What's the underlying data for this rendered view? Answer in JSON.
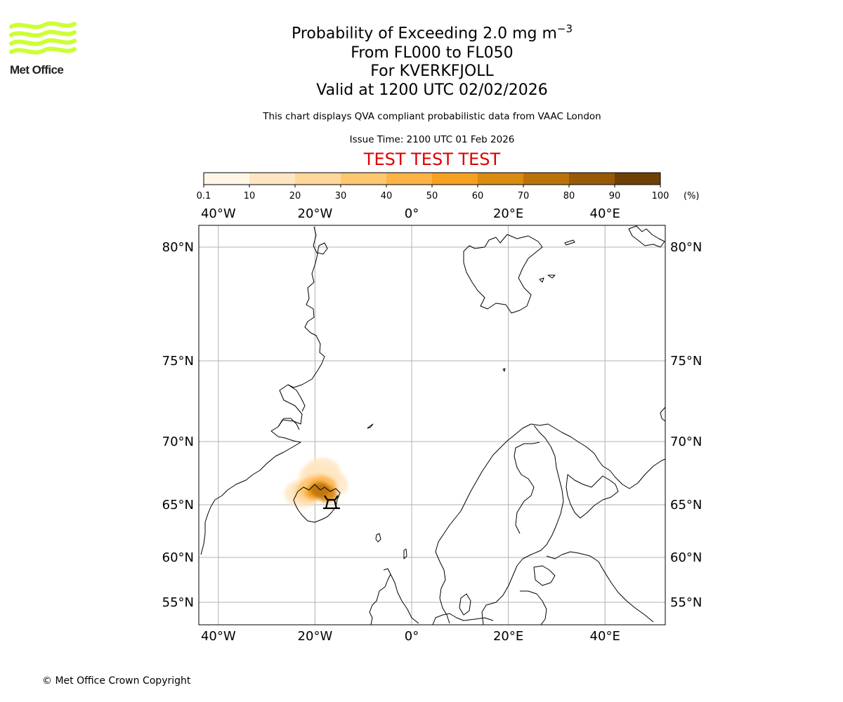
{
  "logo": {
    "text": "Met Office",
    "color": "#ccff33"
  },
  "title": {
    "prefix": "Probability of Exceeding 2.0 mg m",
    "exponent": "−3"
  },
  "subtitle_lines": [
    "From FL000 to FL050",
    "For KVERKFJOLL",
    "Valid at 1200 UTC 02/02/2026"
  ],
  "note": "This chart displays QVA compliant probabilistic data from VAAC London",
  "issue_time": "Issue Time: 2100 UTC 01 Feb 2026",
  "test_banner": "TEST TEST TEST",
  "test_color": "#dd0000",
  "colorbar": {
    "ticks": [
      "0.1",
      "10",
      "20",
      "30",
      "40",
      "50",
      "60",
      "70",
      "80",
      "90",
      "100"
    ],
    "unit": "(%)",
    "colors": [
      "#fff6e6",
      "#ffe6c2",
      "#ffd79a",
      "#ffc670",
      "#ffb347",
      "#f5a020",
      "#d98b12",
      "#bb720b",
      "#985a07",
      "#6f4004"
    ]
  },
  "map": {
    "lon_labels": [
      "40°W",
      "20°W",
      "0°",
      "20°E",
      "40°E"
    ],
    "lon_values": [
      -40,
      -20,
      0,
      20,
      40
    ],
    "lat_labels": [
      "80°N",
      "75°N",
      "70°N",
      "65°N",
      "60°N",
      "55°N"
    ],
    "lat_values": [
      80,
      75,
      70,
      65,
      60,
      55
    ],
    "volcano": "KVERKFJOLL",
    "volcano_location": {
      "lon": -16.7,
      "lat": 64.65
    },
    "probability_plume": [
      {
        "lon": -19.5,
        "lat": 66.6,
        "prob": 25
      },
      {
        "lon": -18.5,
        "lat": 66.4,
        "prob": 45
      },
      {
        "lon": -20.5,
        "lat": 66.3,
        "prob": 35
      },
      {
        "lon": -19.0,
        "lat": 66.2,
        "prob": 75
      },
      {
        "lon": -18.0,
        "lat": 66.0,
        "prob": 65
      },
      {
        "lon": -20.0,
        "lat": 66.0,
        "prob": 55
      },
      {
        "lon": -17.5,
        "lat": 65.8,
        "prob": 60
      },
      {
        "lon": -21.5,
        "lat": 66.0,
        "prob": 20
      },
      {
        "lon": -19.5,
        "lat": 67.2,
        "prob": 15
      },
      {
        "lon": -18.5,
        "lat": 67.6,
        "prob": 10
      },
      {
        "lon": -17.0,
        "lat": 66.6,
        "prob": 15
      },
      {
        "lon": -22.5,
        "lat": 65.9,
        "prob": 10
      }
    ]
  },
  "copyright": "© Met Office Crown Copyright"
}
